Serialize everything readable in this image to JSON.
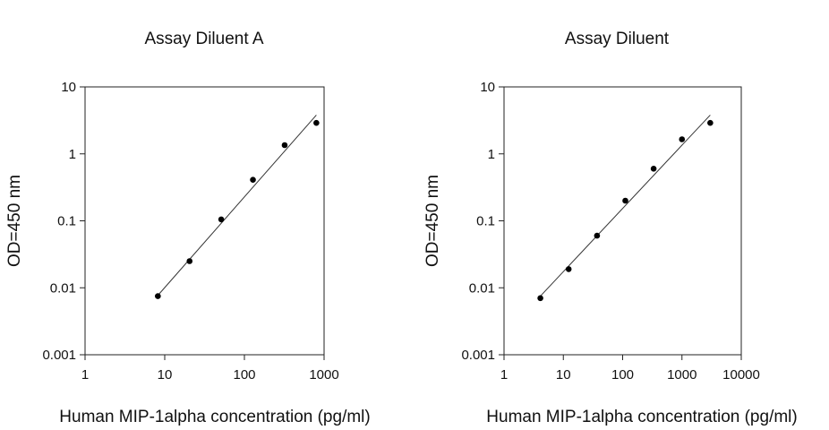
{
  "chart_data": [
    {
      "type": "scatter",
      "title": "Assay Diluent A",
      "xlabel": "Human MIP-1alpha concentration (pg/ml)",
      "ylabel": "OD=450 nm",
      "xscale": "log",
      "yscale": "log",
      "xlim": [
        1,
        1000
      ],
      "ylim": [
        0.001,
        10
      ],
      "xticks": [
        "1",
        "10",
        "100",
        "1000"
      ],
      "yticks": [
        "0.001",
        "0.01",
        "0.1",
        "1",
        "10"
      ],
      "grid": false,
      "series": [
        {
          "x": [
            8.2,
            20.5,
            51.2,
            128,
            320,
            800
          ],
          "y": [
            0.0075,
            0.025,
            0.105,
            0.41,
            1.35,
            2.9
          ]
        }
      ],
      "fit_line": {
        "x": [
          8.2,
          800
        ],
        "y": [
          0.0077,
          3.8
        ]
      }
    },
    {
      "type": "scatter",
      "title": "Assay Diluent",
      "xlabel": "Human MIP-1alpha concentration (pg/ml)",
      "ylabel": "OD=450 nm",
      "xscale": "log",
      "yscale": "log",
      "xlim": [
        1,
        10000
      ],
      "ylim": [
        0.001,
        10
      ],
      "xticks": [
        "1",
        "10",
        "100",
        "1000",
        "10000"
      ],
      "yticks": [
        "0.001",
        "0.01",
        "0.1",
        "1",
        "10"
      ],
      "grid": false,
      "series": [
        {
          "x": [
            4.1,
            12.3,
            37,
            111,
            333,
            1000,
            3000
          ],
          "y": [
            0.007,
            0.019,
            0.06,
            0.2,
            0.6,
            1.65,
            2.9
          ]
        }
      ],
      "fit_line": {
        "x": [
          4.1,
          3000
        ],
        "y": [
          0.0075,
          3.8
        ]
      }
    }
  ]
}
